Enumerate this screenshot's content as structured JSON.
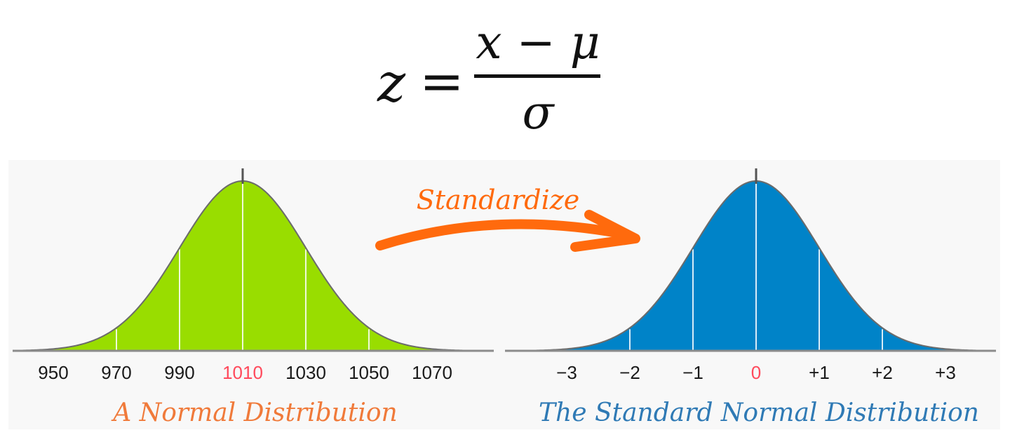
{
  "formula": {
    "lhs": "z",
    "equals": "=",
    "numerator": "x − μ",
    "denominator": "σ"
  },
  "arrow": {
    "label": "Standardize",
    "color": "#ff6a0d"
  },
  "left_curve": {
    "caption": "A Normal Distribution",
    "caption_color": "#f07a3a",
    "fill_color": "#99dd00",
    "mean": 1010,
    "sd": 20,
    "ticks": [
      "950",
      "970",
      "990",
      "1010",
      "1030",
      "1050",
      "1070"
    ],
    "highlight_tick": "1010"
  },
  "right_curve": {
    "caption": "The Standard Normal Distribution",
    "caption_color": "#2f7ab5",
    "fill_color": "#0083c8",
    "mean": 0,
    "sd": 1,
    "ticks": [
      "−3",
      "−2",
      "−1",
      "0",
      "+1",
      "+2",
      "+3"
    ],
    "highlight_tick": "0"
  },
  "highlight_color": "#ff4a5c"
}
